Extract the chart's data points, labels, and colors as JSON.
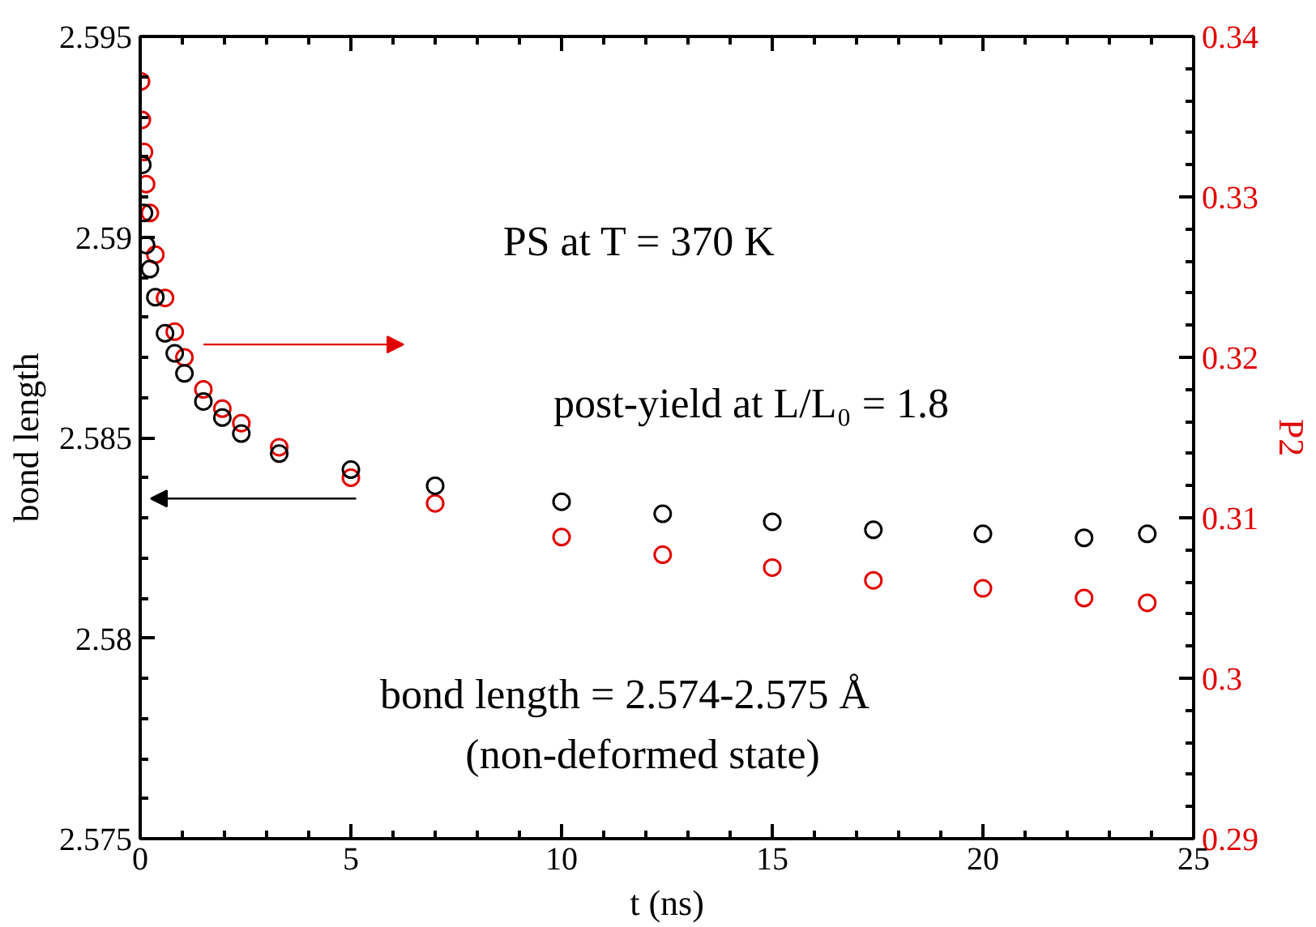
{
  "chart_data": {
    "type": "scatter",
    "xlabel": "t (ns)",
    "ylabel": "bond length",
    "y2label": "P2",
    "annotations": [
      "PS at T = 370 K",
      "post-yield at L/L₀ = 1.8",
      "bond length = 2.574-2.575 Å",
      "(non-deformed state)"
    ],
    "marker": "circle",
    "xlim": [
      0,
      25
    ],
    "xticks": [
      0,
      5,
      10,
      15,
      20,
      25
    ],
    "ylim": [
      2.575,
      2.595
    ],
    "yticks": [
      2.575,
      2.58,
      2.585,
      2.59,
      2.595
    ],
    "y2lim": [
      0.29,
      0.34
    ],
    "y2ticks": [
      0.29,
      0.3,
      0.31,
      0.32,
      0.33,
      0.34
    ],
    "series": [
      {
        "color": "#e00000",
        "axis": "y2",
        "x": [
          0.02,
          0.04,
          0.09,
          0.14,
          0.23,
          0.36,
          0.59,
          0.82,
          1.05,
          1.5,
          1.95,
          2.4,
          3.3,
          5.0,
          7.0,
          10.0,
          12.4,
          15.0,
          17.4,
          20.0,
          22.4,
          23.9
        ],
        "values": [
          0.3372,
          0.3348,
          0.3328,
          0.3308,
          0.329,
          0.3264,
          0.3237,
          0.3216,
          0.32,
          0.318,
          0.3168,
          0.3159,
          0.3144,
          0.3125,
          0.3109,
          0.3088,
          0.3077,
          0.3069,
          0.3061,
          0.3056,
          0.305,
          0.3047
        ]
      },
      {
        "color": "#000000",
        "axis": "y",
        "x": [
          0.05,
          0.09,
          0.14,
          0.23,
          0.36,
          0.59,
          0.82,
          1.05,
          1.5,
          1.95,
          2.4,
          3.3,
          5.0,
          7.0,
          10.0,
          12.4,
          15.0,
          17.4,
          20.0,
          22.4,
          23.9
        ],
        "values": [
          2.5918,
          2.5906,
          2.5898,
          2.5892,
          2.5885,
          2.5876,
          2.5871,
          2.5866,
          2.5859,
          2.5855,
          2.5851,
          2.5846,
          2.5842,
          2.5838,
          2.5834,
          2.5831,
          2.5829,
          2.5827,
          2.5826,
          2.5825,
          2.5826
        ]
      }
    ]
  }
}
